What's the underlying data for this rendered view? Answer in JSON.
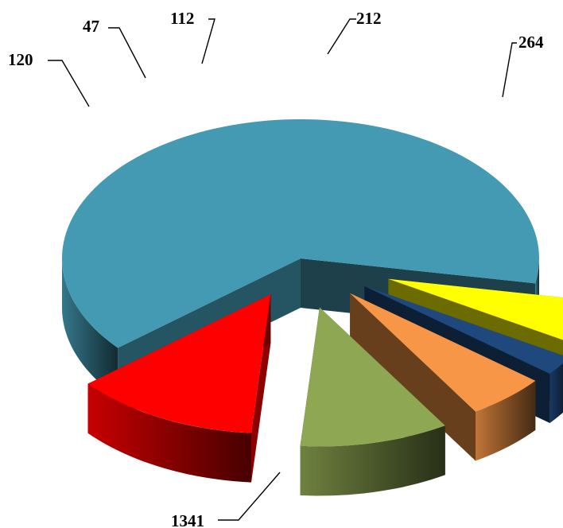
{
  "chart_data": {
    "type": "pie",
    "style": "3d-exploded",
    "title": "",
    "slices": [
      {
        "label": "1341",
        "value": 1341,
        "color": "#4499b3"
      },
      {
        "label": "120",
        "value": 120,
        "color": "#ffff00"
      },
      {
        "label": "47",
        "value": 47,
        "color": "#1f497d"
      },
      {
        "label": "112",
        "value": 112,
        "color": "#f79646"
      },
      {
        "label": "212",
        "value": 212,
        "color": "#8ea752"
      },
      {
        "label": "264",
        "value": 264,
        "color": "#ff0000"
      }
    ],
    "legend": "none",
    "data_labels": "outside-with-leader-lines"
  }
}
